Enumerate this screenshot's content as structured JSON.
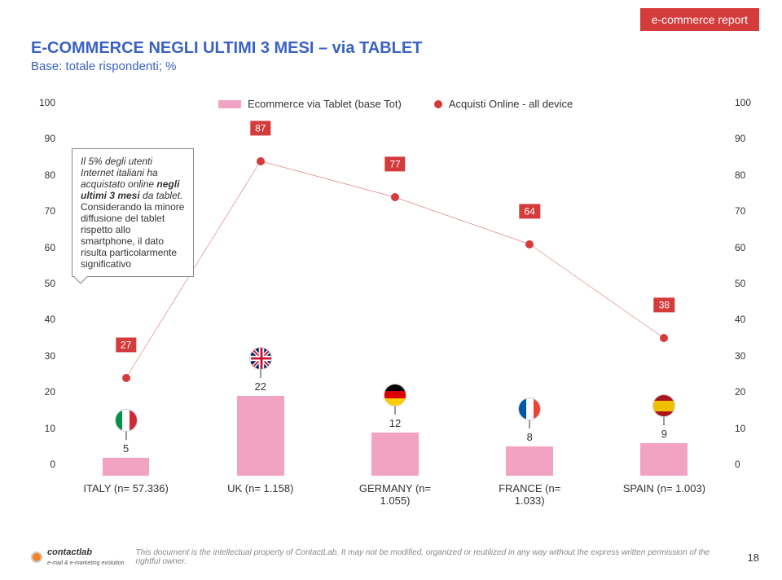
{
  "badge": "e-commerce report",
  "title": "E-COMMERCE NEGLI ULTIMI 3 MESI – via TABLET",
  "subtitle": "Base: totale rispondenti; %",
  "legend": {
    "bar": "Ecommerce via Tablet (base Tot)",
    "line": "Acquisti Online - all device"
  },
  "chart": {
    "type": "bar+line",
    "ylim": [
      0,
      100
    ],
    "ytick_step": 10,
    "bar_color": "#f2a3c2",
    "line_color": "#d43b3b",
    "point_color": "#d43b3b",
    "label_bg": "#d43b3b",
    "background_color": "#ffffff",
    "categories": [
      "ITALY (n= 57.336)",
      "UK (n= 1.158)",
      "GERMANY (n= 1.055)",
      "FRANCE (n= 1.033)",
      "SPAIN (n= 1.003)"
    ],
    "bars": [
      5,
      22,
      12,
      8,
      9
    ],
    "line": [
      27,
      87,
      77,
      64,
      38
    ],
    "flags": [
      "italy",
      "uk",
      "germany",
      "france",
      "spain"
    ]
  },
  "callout": {
    "text_it1": "Il 5% degli utenti Internet italiani ha acquistato online ",
    "text_bold": "negli ultimi 3 mesi",
    "text_it2": " da tablet.",
    "text_plain": "Considerando la minore diffusione del tablet rispetto allo smartphone, il dato risulta particolarmente significativo"
  },
  "footer": {
    "logo_text": "contactlab",
    "logo_sub": "e-mail & e-marketing evolution",
    "copyright": "This document is the intellectual property of ContactLab. It may not be modified, organized or reutilized in any way without the express written permission of the rightful owner.",
    "page": "18"
  }
}
